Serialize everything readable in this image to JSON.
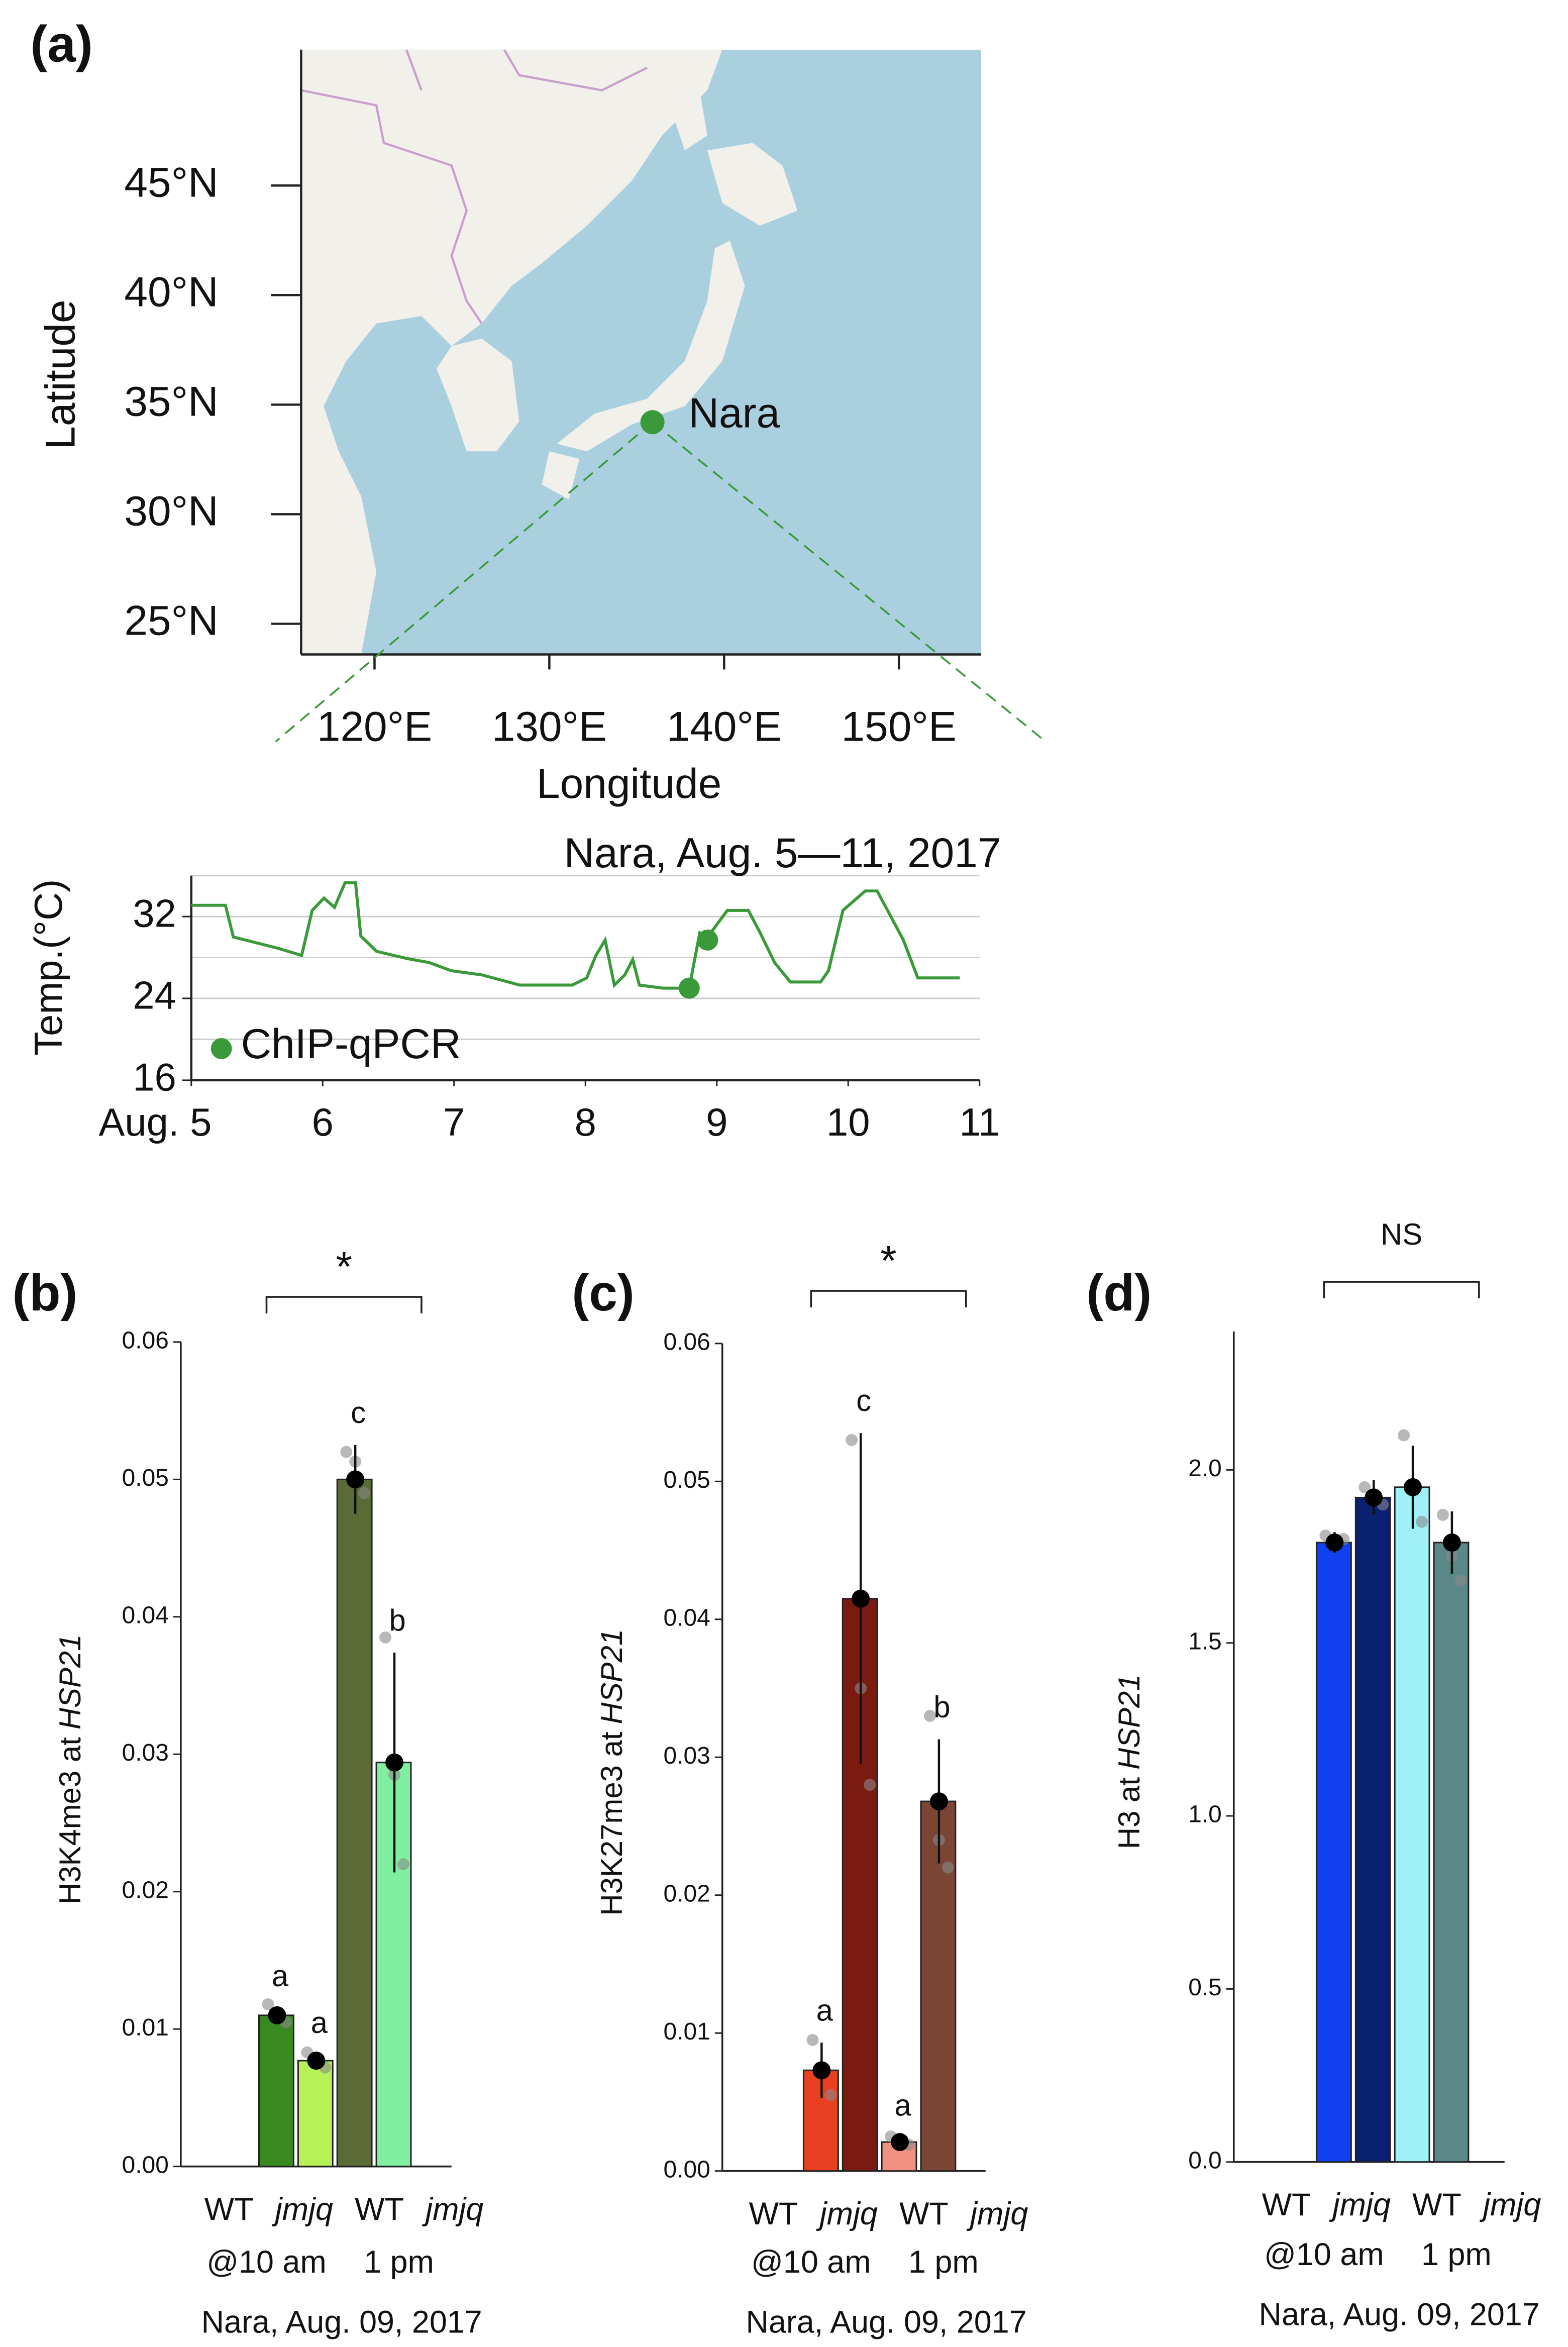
{
  "chart_data": [
    {
      "type": "map",
      "panel": "(a)",
      "xlabel": "Longitude",
      "ylabel": "Latitude",
      "xlim": [
        115.8,
        154.7
      ],
      "ylim": [
        23.6,
        51.2
      ],
      "xticks": [
        {
          "value": 120,
          "label": "120°E"
        },
        {
          "value": 130,
          "label": "130°E"
        },
        {
          "value": 140,
          "label": "140°E"
        },
        {
          "value": 150,
          "label": "150°E"
        }
      ],
      "yticks": [
        {
          "value": 25,
          "label": "25°N"
        },
        {
          "value": 30,
          "label": "30°N"
        },
        {
          "value": 35,
          "label": "35°N"
        },
        {
          "value": 40,
          "label": "40°N"
        },
        {
          "value": 45,
          "label": "45°N"
        }
      ],
      "points": {
        "names": [
          "Nara"
        ],
        "x": [
          135.9
        ],
        "values": [
          34.2
        ]
      },
      "color": "#3a9a3a"
    },
    {
      "type": "line",
      "title": "Nara, Aug. 5—11, 2017",
      "ylabel": "Temp.(°C)",
      "x": [
        5.0,
        5.26,
        5.32,
        5.66,
        5.84,
        5.92,
        6.01,
        6.09,
        6.17,
        6.25,
        6.29,
        6.41,
        6.64,
        6.81,
        6.98,
        7.21,
        7.5,
        7.9,
        8.01,
        8.08,
        8.15,
        8.22,
        8.3,
        8.36,
        8.41,
        8.59,
        8.79,
        8.87,
        8.93,
        9.08,
        9.24,
        9.33,
        9.44,
        9.56,
        9.79,
        9.85,
        9.96,
        10.13,
        10.22,
        10.3,
        10.42,
        10.53,
        10.85
      ],
      "values": [
        33.1,
        33.1,
        30.0,
        28.9,
        28.2,
        32.6,
        33.8,
        32.9,
        35.3,
        35.3,
        30.1,
        28.6,
        27.9,
        27.5,
        26.7,
        26.3,
        25.3,
        25.3,
        26.0,
        28.2,
        29.7,
        25.3,
        26.3,
        27.8,
        25.3,
        25.0,
        25.0,
        30.4,
        30.0,
        32.6,
        32.6,
        30.4,
        27.5,
        25.6,
        25.6,
        26.7,
        32.6,
        34.5,
        34.5,
        32.6,
        29.7,
        26.0,
        26.0
      ],
      "color": "#3a9a3a",
      "points": {
        "name": "ChIP-qPCR",
        "x": [
          8.79,
          8.93
        ],
        "values": [
          25.0,
          29.7
        ]
      },
      "xlim": [
        5,
        11
      ],
      "ylim": [
        16,
        36
      ],
      "xticks": [
        {
          "value": 5,
          "label": "Aug. 5"
        },
        6,
        7,
        8,
        9,
        10,
        11
      ],
      "yticks": [
        16,
        24,
        32
      ],
      "grid": [
        20,
        24,
        28,
        32,
        36
      ]
    },
    {
      "type": "bar",
      "panel": "(b)",
      "ylabel": "H3K4me3 at",
      "ylabel_gene": "HSP21",
      "categories": [
        "WT",
        "jmjq",
        "WT",
        "jmjq"
      ],
      "category_style": [
        "normal",
        "italic",
        "normal",
        "italic"
      ],
      "values": [
        0.011,
        0.0077,
        0.05,
        0.0294
      ],
      "errors": [
        0.0005,
        0.0004,
        0.0025,
        0.008
      ],
      "points": [
        [
          0.0118,
          0.0112,
          0.0105
        ],
        [
          0.0083,
          0.0078,
          0.0072
        ],
        [
          0.052,
          0.0513,
          0.049
        ],
        [
          0.0385,
          0.0285,
          0.022
        ]
      ],
      "colors": [
        "#3a8a22",
        "#b8f058",
        "#5a6b35",
        "#80f0a0"
      ],
      "letters": [
        "a",
        "a",
        "c",
        "b"
      ],
      "times": [
        "@10 am",
        "1 pm"
      ],
      "place": "Nara, Aug. 09, 2017",
      "significance": "*",
      "ylim": [
        0,
        0.06
      ],
      "yticks": [
        {
          "value": 0,
          "label": "0.00"
        },
        0.01,
        0.02,
        0.03,
        0.04,
        0.05,
        0.06
      ]
    },
    {
      "type": "bar",
      "panel": "(c)",
      "ylabel": "H3K27me3 at",
      "ylabel_gene": "HSP21",
      "categories": [
        "WT",
        "jmjq",
        "WT",
        "jmjq"
      ],
      "category_style": [
        "normal",
        "italic",
        "normal",
        "italic"
      ],
      "values": [
        0.0073,
        0.0415,
        0.0021,
        0.0268
      ],
      "errors": [
        0.002,
        0.012,
        0.0003,
        0.0045
      ],
      "points": [
        [
          0.0095,
          0.0075,
          0.0055
        ],
        [
          0.053,
          0.035,
          0.028
        ],
        [
          0.0025,
          0.0021,
          0.0019
        ],
        [
          0.033,
          0.024,
          0.022
        ]
      ],
      "colors": [
        "#e84020",
        "#7a1a10",
        "#f09080",
        "#7a4535"
      ],
      "letters": [
        "a",
        "c",
        "a",
        "b"
      ],
      "times": [
        "@10 am",
        "1 pm"
      ],
      "place": "Nara, Aug. 09, 2017",
      "significance": "*",
      "ylim": [
        0,
        0.06
      ],
      "yticks": [
        {
          "value": 0,
          "label": "0.00"
        },
        0.01,
        0.02,
        0.03,
        0.04,
        0.05,
        0.06
      ]
    },
    {
      "type": "bar",
      "panel": "(d)",
      "ylabel": "H3 at",
      "ylabel_gene": "HSP21",
      "categories": [
        "WT",
        "jmjq",
        "WT",
        "jmjq"
      ],
      "category_style": [
        "normal",
        "italic",
        "normal",
        "italic"
      ],
      "values": [
        1.79,
        1.92,
        1.95,
        1.79
      ],
      "errors": [
        0.03,
        0.05,
        0.12,
        0.09
      ],
      "points": [
        [
          1.81,
          1.78,
          1.8
        ],
        [
          1.95,
          1.93,
          1.9
        ],
        [
          2.1,
          1.95,
          1.85
        ],
        [
          1.87,
          1.75,
          1.68
        ]
      ],
      "colors": [
        "#1040f0",
        "#0a2070",
        "#a0f0f8",
        "#5a8888"
      ],
      "times": [
        "@10 am",
        "1 pm"
      ],
      "place": "Nara, Aug. 09, 2017",
      "significance": "NS",
      "ylim": [
        0,
        2.4
      ],
      "yticks": [
        {
          "value": 0,
          "label": "0.0"
        },
        0.5,
        {
          "value": 1,
          "label": "1.0"
        },
        1.5,
        {
          "value": 2,
          "label": "2.0"
        }
      ]
    }
  ]
}
